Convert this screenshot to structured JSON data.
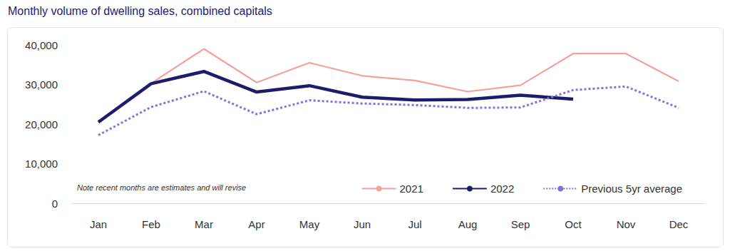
{
  "chart_data": {
    "type": "line",
    "title": "Monthly volume of dwelling sales, combined capitals",
    "annotation": "Note recent months are estimates and will revise",
    "categories": [
      "Jan",
      "Feb",
      "Mar",
      "Apr",
      "May",
      "Jun",
      "Jul",
      "Aug",
      "Sep",
      "Oct",
      "Nov",
      "Dec"
    ],
    "series": [
      {
        "name": "2021",
        "color": "#f2a29b",
        "line_style": "solid",
        "values": [
          null,
          30300,
          39000,
          30500,
          35500,
          32200,
          31000,
          28200,
          29800,
          37800,
          37800,
          30800
        ]
      },
      {
        "name": "2022",
        "color": "#1c1c6b",
        "line_style": "solid",
        "values": [
          20500,
          30200,
          33300,
          28100,
          29700,
          26800,
          26100,
          26200,
          27300,
          26300,
          null,
          null
        ]
      },
      {
        "name": "Previous 5yr average",
        "color": "#7f74d8",
        "line_style": "dotted",
        "values": [
          17200,
          24300,
          28300,
          22500,
          26000,
          25200,
          24800,
          24100,
          24200,
          28600,
          29500,
          24100
        ]
      }
    ],
    "ylim": [
      0,
      40000
    ],
    "yticks": [
      0,
      {
        "value": 10000,
        "label": "10,000"
      },
      {
        "value": 20000,
        "label": "20,000"
      },
      {
        "value": 30000,
        "label": "30,000"
      },
      {
        "value": 40000,
        "label": "40,000"
      }
    ],
    "grid": false,
    "legend": "lower right"
  }
}
